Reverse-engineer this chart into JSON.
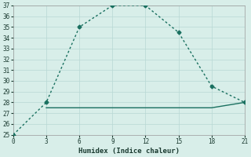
{
  "x_main": [
    0,
    3,
    6,
    9,
    12,
    15,
    18,
    21
  ],
  "y_main": [
    25,
    28,
    35,
    37,
    37,
    34.5,
    29.5,
    28
  ],
  "x_flat": [
    3,
    6,
    9,
    12,
    15,
    18,
    21
  ],
  "y_flat": [
    27.5,
    27.5,
    27.5,
    27.5,
    27.5,
    27.5,
    28
  ],
  "xlabel": "Humidex (Indice chaleur)",
  "xlim": [
    0,
    21
  ],
  "ylim": [
    25,
    37
  ],
  "yticks": [
    25,
    26,
    27,
    28,
    29,
    30,
    31,
    32,
    33,
    34,
    35,
    36,
    37
  ],
  "xticks": [
    0,
    3,
    6,
    9,
    12,
    15,
    18,
    21
  ],
  "line_color": "#1a7060",
  "bg_color": "#d8eee9",
  "grid_color": "#b8d8d4"
}
